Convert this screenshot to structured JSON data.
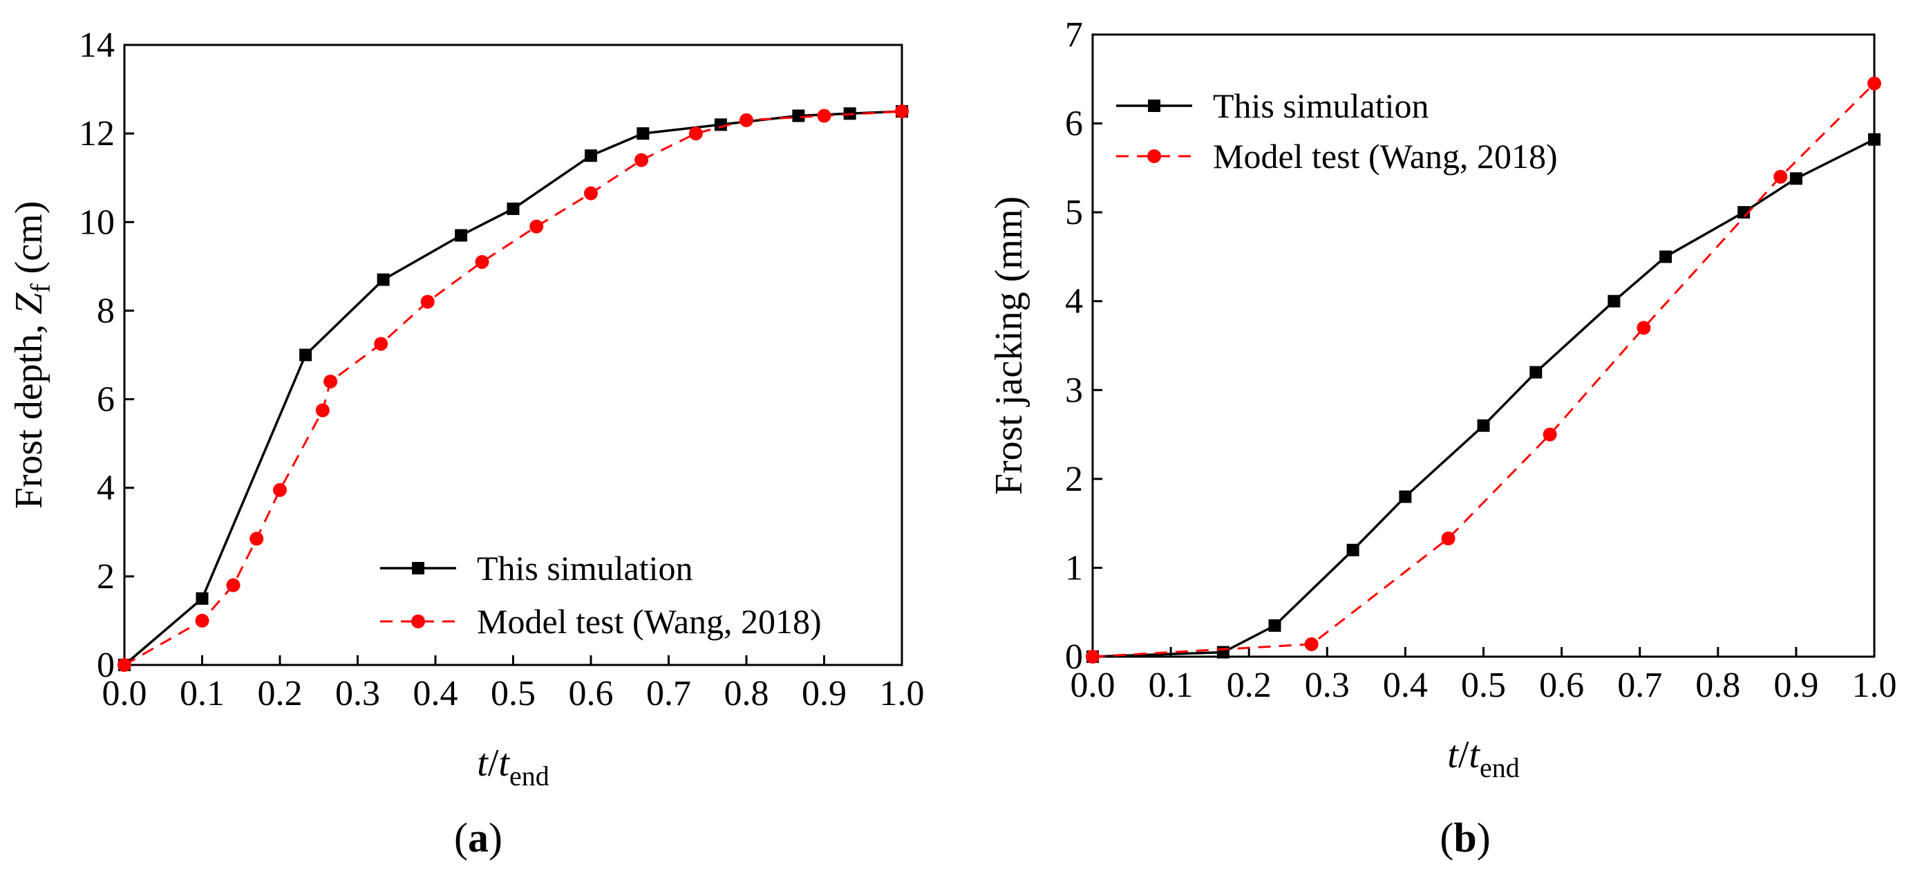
{
  "chart_data": [
    {
      "type": "line",
      "panel_label_open": "(",
      "panel_label": "a",
      "panel_label_close": ")",
      "ylabel_prefix": "Frost depth, ",
      "ylabel_var": "Z",
      "ylabel_sub": "f",
      "ylabel_suffix": " (cm)",
      "xlabel_var": "t",
      "xlabel_slash": "/",
      "xlabel_var2": "t",
      "xlabel_sub": "end",
      "xlim": [
        0,
        1
      ],
      "ylim": [
        0,
        14
      ],
      "xticks": [
        0.0,
        0.1,
        0.2,
        0.3,
        0.4,
        0.5,
        0.6,
        0.7,
        0.8,
        0.9,
        1.0
      ],
      "xtick_labels": [
        "0.0",
        "0.1",
        "0.2",
        "0.3",
        "0.4",
        "0.5",
        "0.6",
        "0.7",
        "0.8",
        "0.9",
        "1.0"
      ],
      "yticks": [
        0,
        2,
        4,
        6,
        8,
        10,
        12,
        14
      ],
      "ytick_labels": [
        "0",
        "2",
        "4",
        "6",
        "8",
        "10",
        "12",
        "14"
      ],
      "legend_position": "bottom-right",
      "series": [
        {
          "name": "This simulation",
          "color": "#000000",
          "dashed": false,
          "marker": "square",
          "x": [
            0.0,
            0.1,
            0.233,
            0.333,
            0.433,
            0.5,
            0.6,
            0.667,
            0.767,
            0.867,
            0.933,
            1.0
          ],
          "y": [
            0.0,
            1.5,
            7.0,
            8.7,
            9.7,
            10.3,
            11.5,
            12.0,
            12.2,
            12.4,
            12.45,
            12.5
          ]
        },
        {
          "name": "Model test (Wang, 2018)",
          "color": "#ff0000",
          "dashed": true,
          "marker": "circle",
          "x": [
            0.0,
            0.1,
            0.14,
            0.17,
            0.2,
            0.255,
            0.265,
            0.33,
            0.39,
            0.46,
            0.53,
            0.6,
            0.665,
            0.735,
            0.8,
            0.9,
            1.0
          ],
          "y": [
            0.0,
            1.0,
            1.8,
            2.85,
            3.95,
            5.75,
            6.4,
            7.25,
            8.2,
            9.1,
            9.9,
            10.65,
            11.4,
            12.0,
            12.3,
            12.4,
            12.5
          ]
        }
      ]
    },
    {
      "type": "line",
      "panel_label_open": "(",
      "panel_label": "b",
      "panel_label_close": ")",
      "ylabel": "Frost jacking (mm)",
      "xlabel_var": "t",
      "xlabel_slash": "/",
      "xlabel_var2": "t",
      "xlabel_sub": "end",
      "xlim": [
        0,
        1
      ],
      "ylim": [
        0,
        7
      ],
      "xticks": [
        0.0,
        0.1,
        0.2,
        0.3,
        0.4,
        0.5,
        0.6,
        0.7,
        0.8,
        0.9,
        1.0
      ],
      "xtick_labels": [
        "0.0",
        "0.1",
        "0.2",
        "0.3",
        "0.4",
        "0.5",
        "0.6",
        "0.7",
        "0.8",
        "0.9",
        "1.0"
      ],
      "yticks": [
        0,
        1,
        2,
        3,
        4,
        5,
        6,
        7
      ],
      "ytick_labels": [
        "0",
        "1",
        "2",
        "3",
        "4",
        "5",
        "6",
        "7"
      ],
      "legend_position": "top-left",
      "series": [
        {
          "name": "This simulation",
          "color": "#000000",
          "dashed": false,
          "marker": "square",
          "x": [
            0.0,
            0.167,
            0.233,
            0.333,
            0.4,
            0.5,
            0.567,
            0.667,
            0.733,
            0.833,
            0.9,
            1.0
          ],
          "y": [
            0.0,
            0.05,
            0.35,
            1.2,
            1.8,
            2.6,
            3.2,
            4.0,
            4.5,
            5.0,
            5.38,
            5.82
          ]
        },
        {
          "name": "Model test (Wang, 2018)",
          "color": "#ff0000",
          "dashed": true,
          "marker": "circle",
          "x": [
            0.0,
            0.28,
            0.455,
            0.585,
            0.705,
            0.88,
            1.0
          ],
          "y": [
            0.0,
            0.14,
            1.33,
            2.5,
            3.7,
            5.4,
            6.45
          ]
        }
      ]
    }
  ]
}
